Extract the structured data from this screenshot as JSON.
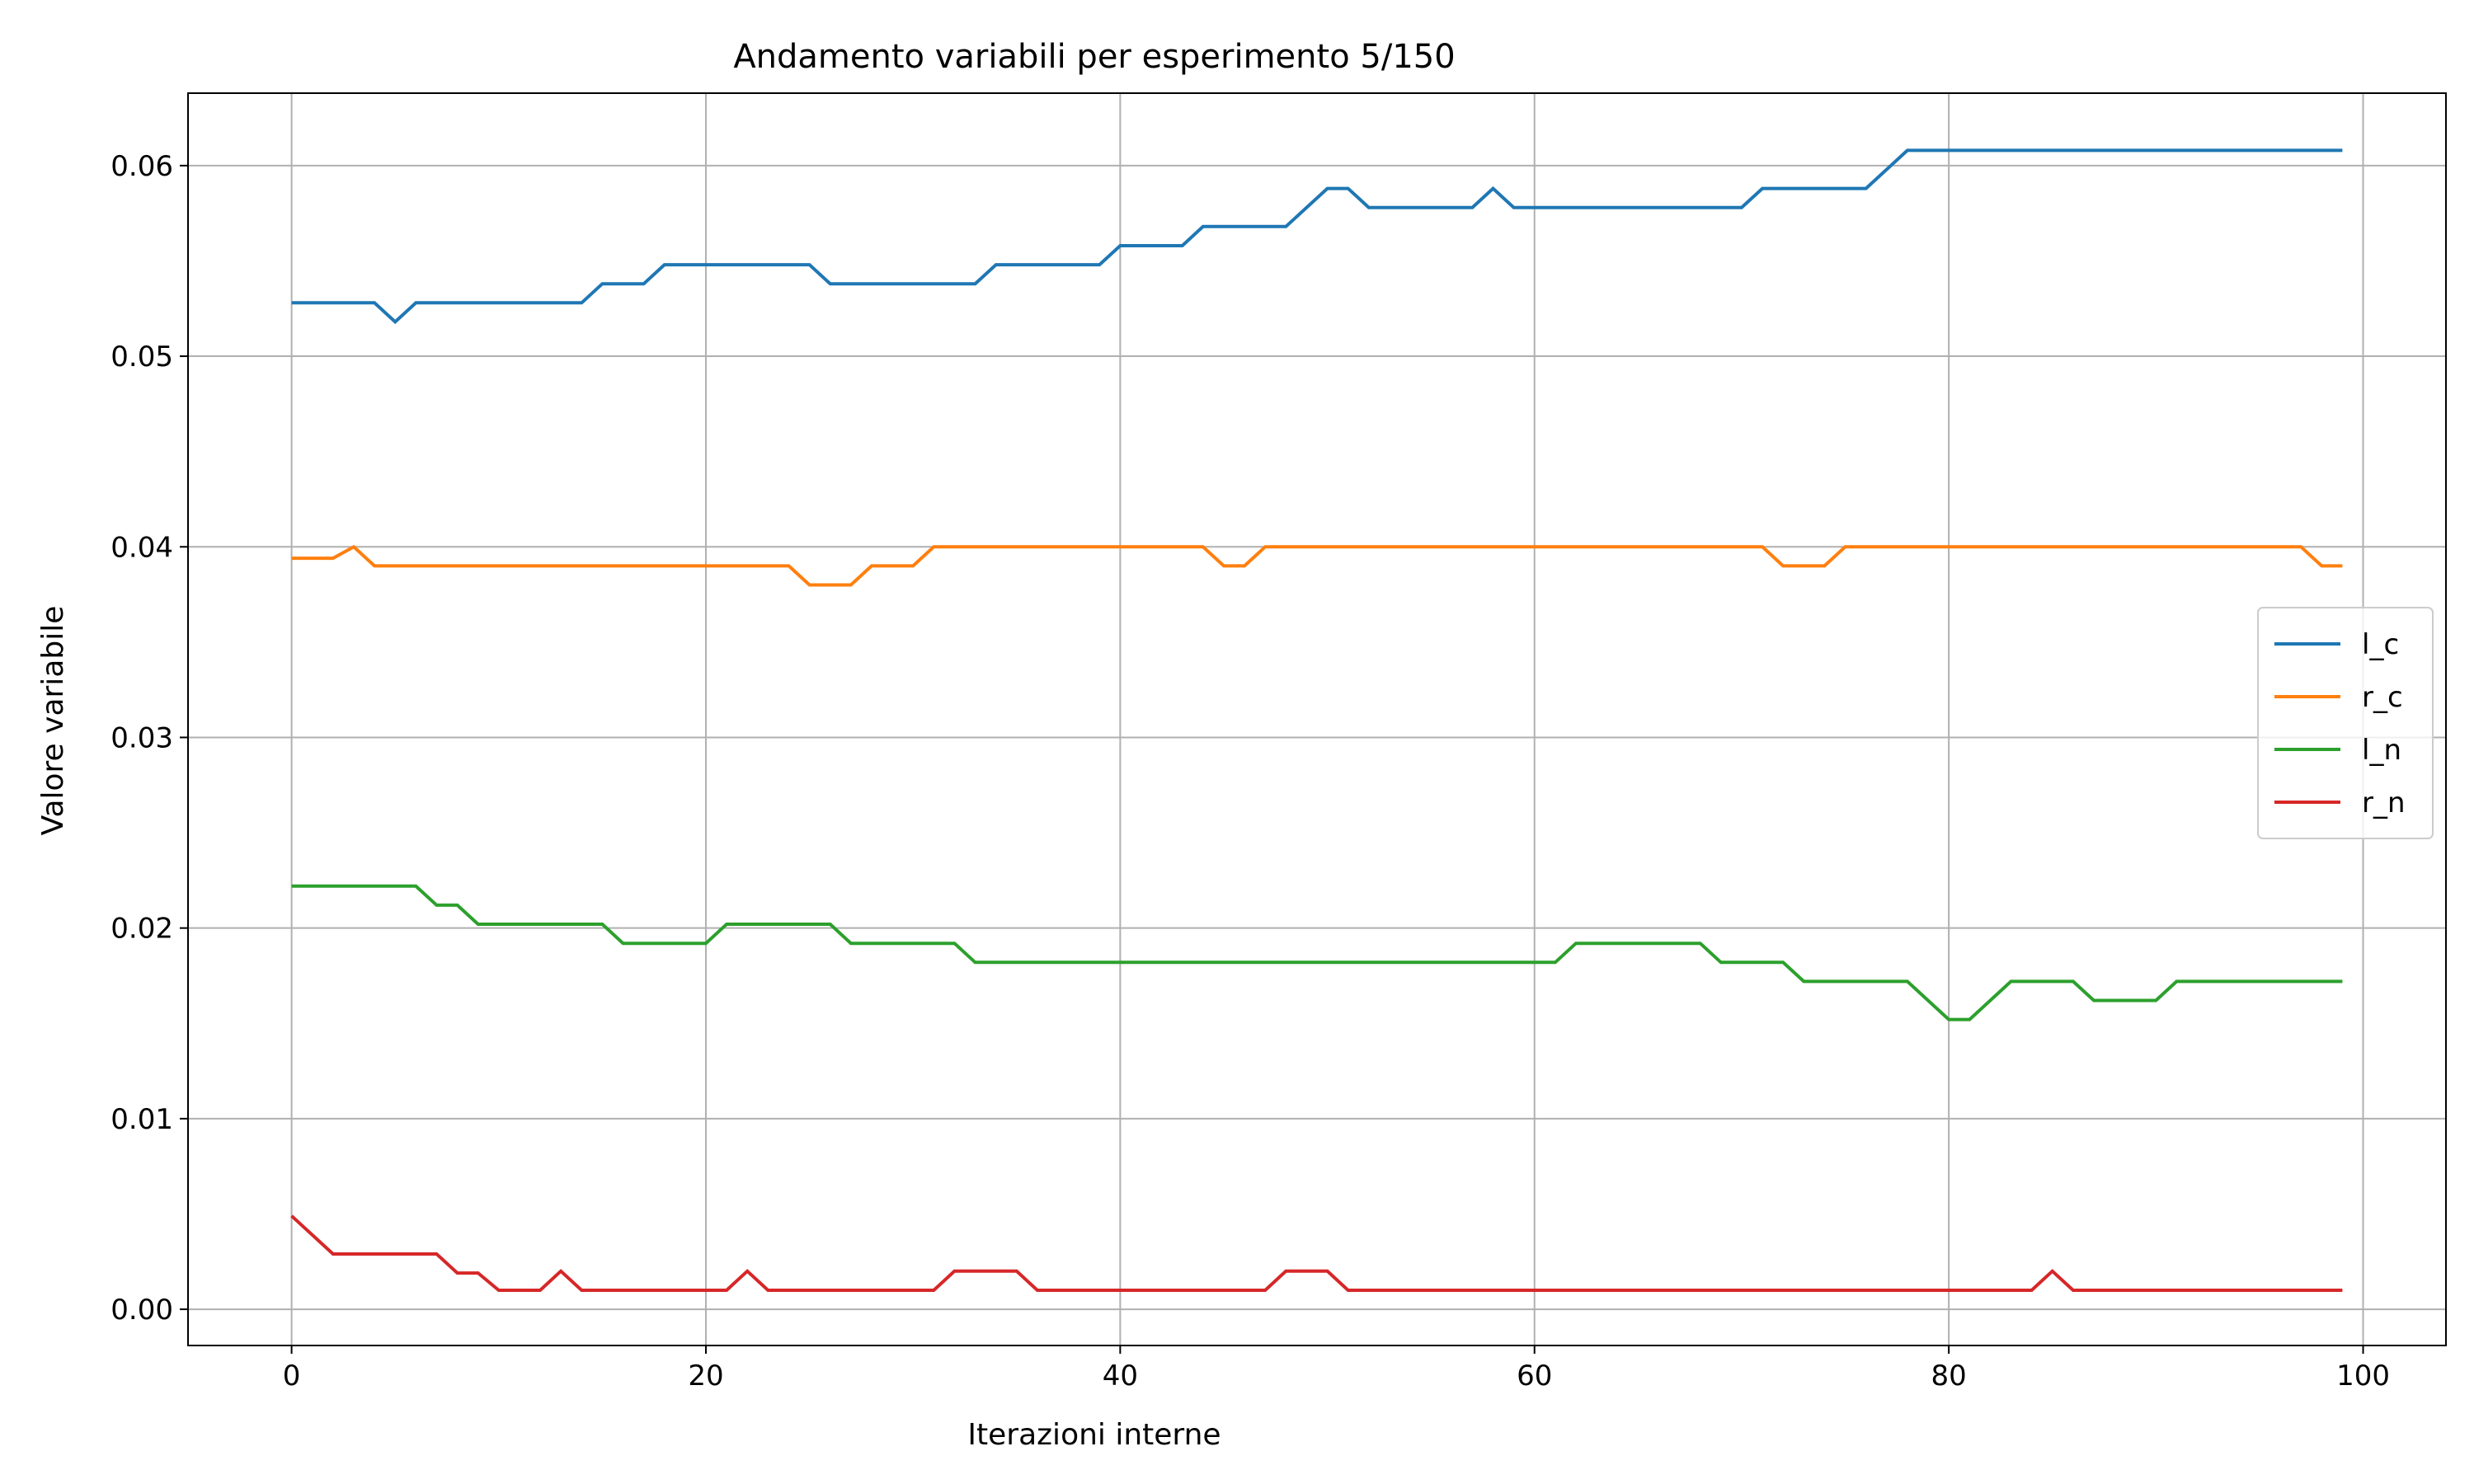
{
  "chart_data": {
    "type": "line",
    "title": "Andamento variabili per esperimento 5/150",
    "xlabel": "Iterazioni interne",
    "ylabel": "Valore variabile",
    "xlim": [
      -5,
      104
    ],
    "ylim": [
      -0.0019,
      0.0638
    ],
    "xticks": [
      0,
      20,
      40,
      60,
      80,
      100
    ],
    "xtick_labels": [
      "0",
      "20",
      "40",
      "60",
      "80",
      "100"
    ],
    "yticks": [
      0,
      0.01,
      0.02,
      0.03,
      0.04,
      0.05,
      0.06
    ],
    "ytick_labels": [
      "0.00",
      "0.01",
      "0.02",
      "0.03",
      "0.04",
      "0.05",
      "0.06"
    ],
    "grid": true,
    "legend": "center-right",
    "series": [
      {
        "name": "l_c",
        "color": "#1f77b4",
        "segments": [
          [
            0,
            0.0528
          ],
          [
            4,
            0.0528
          ],
          [
            5,
            0.0518
          ],
          [
            6,
            0.0528
          ],
          [
            14,
            0.0528
          ],
          [
            15,
            0.0538
          ],
          [
            17,
            0.0538
          ],
          [
            18,
            0.0548
          ],
          [
            25,
            0.0548
          ],
          [
            26,
            0.0538
          ],
          [
            33,
            0.0538
          ],
          [
            34,
            0.0548
          ],
          [
            39,
            0.0548
          ],
          [
            40,
            0.0558
          ],
          [
            43,
            0.0558
          ],
          [
            44,
            0.0568
          ],
          [
            48,
            0.0568
          ],
          [
            50,
            0.0588
          ],
          [
            51,
            0.0588
          ],
          [
            52,
            0.0578
          ],
          [
            57,
            0.0578
          ],
          [
            58,
            0.0588
          ],
          [
            59,
            0.0578
          ],
          [
            70,
            0.0578
          ],
          [
            71,
            0.0588
          ],
          [
            76,
            0.0588
          ],
          [
            78,
            0.0608
          ],
          [
            99,
            0.0608
          ]
        ]
      },
      {
        "name": "r_c",
        "color": "#ff7f0e",
        "segments": [
          [
            0,
            0.0394
          ],
          [
            2,
            0.0394
          ],
          [
            3,
            0.04
          ],
          [
            4,
            0.039
          ],
          [
            24,
            0.039
          ],
          [
            25,
            0.038
          ],
          [
            27,
            0.038
          ],
          [
            28,
            0.039
          ],
          [
            30,
            0.039
          ],
          [
            31,
            0.04
          ],
          [
            44,
            0.04
          ],
          [
            45,
            0.039
          ],
          [
            46,
            0.039
          ],
          [
            47,
            0.04
          ],
          [
            71,
            0.04
          ],
          [
            72,
            0.039
          ],
          [
            74,
            0.039
          ],
          [
            75,
            0.04
          ],
          [
            97,
            0.04
          ],
          [
            98,
            0.039
          ],
          [
            99,
            0.039
          ]
        ]
      },
      {
        "name": "l_n",
        "color": "#2ca02c",
        "segments": [
          [
            0,
            0.0222
          ],
          [
            6,
            0.0222
          ],
          [
            7,
            0.0212
          ],
          [
            8,
            0.0212
          ],
          [
            9,
            0.0202
          ],
          [
            15,
            0.0202
          ],
          [
            16,
            0.0192
          ],
          [
            20,
            0.0192
          ],
          [
            21,
            0.0202
          ],
          [
            26,
            0.0202
          ],
          [
            27,
            0.0192
          ],
          [
            32,
            0.0192
          ],
          [
            33,
            0.0182
          ],
          [
            61,
            0.0182
          ],
          [
            62,
            0.0192
          ],
          [
            68,
            0.0192
          ],
          [
            69,
            0.0182
          ],
          [
            72,
            0.0182
          ],
          [
            73,
            0.0172
          ],
          [
            78,
            0.0172
          ],
          [
            80,
            0.0152
          ],
          [
            81,
            0.0152
          ],
          [
            83,
            0.0172
          ],
          [
            86,
            0.0172
          ],
          [
            87,
            0.0162
          ],
          [
            90,
            0.0162
          ],
          [
            91,
            0.0172
          ],
          [
            99,
            0.0172
          ]
        ]
      },
      {
        "name": "r_n",
        "color": "#d62728",
        "segments": [
          [
            0,
            0.0049
          ],
          [
            2,
            0.0029
          ],
          [
            7,
            0.0029
          ],
          [
            8,
            0.0019
          ],
          [
            9,
            0.0019
          ],
          [
            10,
            0.001
          ],
          [
            12,
            0.001
          ],
          [
            13,
            0.002
          ],
          [
            14,
            0.001
          ],
          [
            21,
            0.001
          ],
          [
            22,
            0.002
          ],
          [
            23,
            0.001
          ],
          [
            31,
            0.001
          ],
          [
            32,
            0.002
          ],
          [
            35,
            0.002
          ],
          [
            36,
            0.001
          ],
          [
            47,
            0.001
          ],
          [
            48,
            0.002
          ],
          [
            50,
            0.002
          ],
          [
            51,
            0.001
          ],
          [
            84,
            0.001
          ],
          [
            85,
            0.002
          ],
          [
            86,
            0.001
          ],
          [
            99,
            0.001
          ]
        ]
      }
    ]
  }
}
